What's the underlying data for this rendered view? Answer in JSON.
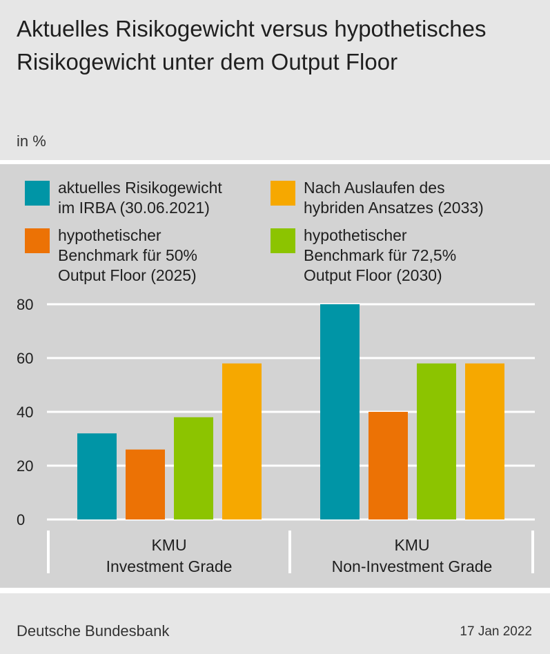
{
  "header": {
    "title": "Aktuelles Risikogewicht versus hypothetisches Risikogewicht unter dem Output Floor",
    "subtitle": "in %"
  },
  "footer": {
    "source": "Deutsche Bundesbank",
    "date": "17 Jan 2022"
  },
  "chart_data": {
    "type": "bar",
    "categories": [
      "KMU\nInvestment Grade",
      "KMU\nNon-Investment Grade"
    ],
    "series": [
      {
        "name": "aktuelles Risikogewicht im IRBA (30.06.2021)",
        "color": "#0095a6",
        "values": [
          32,
          80
        ]
      },
      {
        "name": "hypothetischer Benchmark für 50% Output Floor (2025)",
        "color": "#ec7205",
        "values": [
          26,
          40
        ]
      },
      {
        "name": "hypothetischer Benchmark für 72,5% Output Floor (2030)",
        "color": "#8cc400",
        "values": [
          38,
          58
        ]
      },
      {
        "name": "Nach Auslaufen des hybriden Ansatzes (2033)",
        "color": "#f6a800",
        "values": [
          58,
          58
        ]
      }
    ],
    "legend": [
      {
        "label": "aktuelles Risikogewicht\nim IRBA (30.06.2021)",
        "color": "#0095a6"
      },
      {
        "label": "Nach Auslaufen des\nhybriden Ansatzes (2033)",
        "color": "#f6a800"
      },
      {
        "label": "hypothetischer\nBenchmark für 50%\nOutput Floor (2025)",
        "color": "#ec7205"
      },
      {
        "label": "hypothetischer\nBenchmark für 72,5%\nOutput Floor (2030)",
        "color": "#8cc400"
      }
    ],
    "yticks": [
      "0",
      "20",
      "40",
      "60",
      "80"
    ],
    "ylim": [
      0,
      80
    ],
    "grid": true,
    "legend_position": "top"
  }
}
